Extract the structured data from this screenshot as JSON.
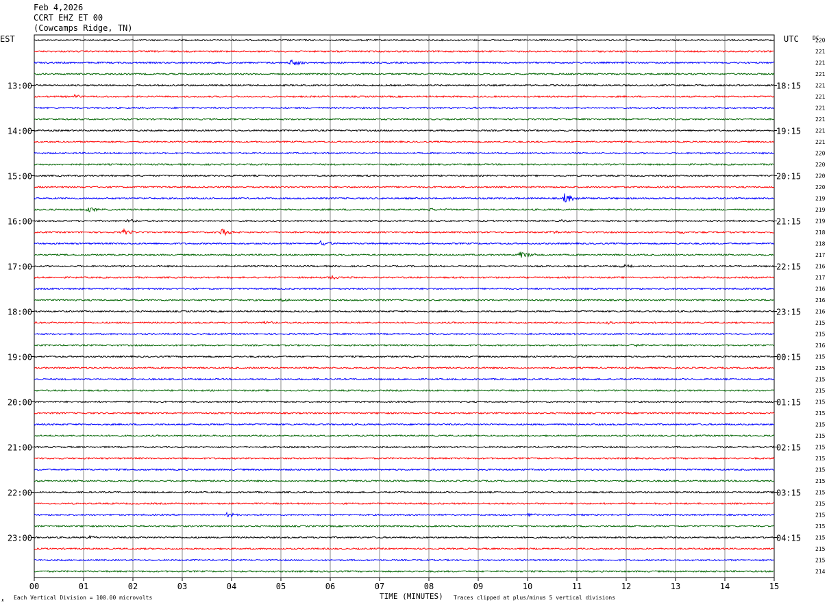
{
  "header": {
    "date": "Feb 4,2026",
    "station": "CCRT EHZ ET 00",
    "location": "(Cowcamps Ridge, TN)"
  },
  "labels": {
    "left_zone": "EST",
    "right_zone": "UTC",
    "dc_header": "DC",
    "xlabel": "TIME (MINUTES)",
    "scale_note": "Each Vertical Division =  100.00 microvolts",
    "clip_note": "Traces clipped at plus/minus 5 vertical divisions",
    "corner_mark": "ᴥ"
  },
  "chart_data": {
    "type": "line",
    "description_kind": "helicorder",
    "x_ticks": [
      "00",
      "01",
      "02",
      "03",
      "04",
      "05",
      "06",
      "07",
      "08",
      "09",
      "10",
      "11",
      "12",
      "13",
      "14",
      "15"
    ],
    "xlim": [
      0,
      15
    ],
    "trace_colors": [
      "#000000",
      "#ff0000",
      "#0000ff",
      "#006400"
    ],
    "left_hour_labels": [
      "13:00",
      "14:00",
      "15:00",
      "16:00",
      "17:00",
      "18:00",
      "19:00",
      "20:00",
      "21:00",
      "22:00",
      "23:00"
    ],
    "right_hour_labels": [
      "18:15",
      "19:15",
      "20:15",
      "21:15",
      "22:15",
      "23:15",
      "00:15",
      "01:15",
      "02:15",
      "03:15",
      "04:15"
    ],
    "dc_values": [
      "220",
      "221",
      "221",
      "221",
      "221",
      "221",
      "221",
      "221",
      "221",
      "221",
      "220",
      "220",
      "220",
      "220",
      "219",
      "219",
      "219",
      "218",
      "218",
      "217",
      "216",
      "217",
      "216",
      "216",
      "216",
      "215",
      "215",
      "216",
      "215",
      "215",
      "215",
      "215",
      "215",
      "215",
      "215",
      "215",
      "215",
      "215",
      "215",
      "215",
      "215",
      "215",
      "215",
      "215",
      "215",
      "215",
      "215",
      "214"
    ],
    "events": [
      {
        "row": 2,
        "minute": 5.2,
        "amp": 5
      },
      {
        "row": 5,
        "minute": 0.8,
        "amp": 3
      },
      {
        "row": 14,
        "minute": 10.75,
        "amp": 7
      },
      {
        "row": 15,
        "minute": 1.1,
        "amp": 3
      },
      {
        "row": 15,
        "minute": 8.0,
        "amp": 2
      },
      {
        "row": 16,
        "minute": 1.9,
        "amp": 2
      },
      {
        "row": 16,
        "minute": 3.0,
        "amp": 2
      },
      {
        "row": 16,
        "minute": 10.7,
        "amp": 2
      },
      {
        "row": 17,
        "minute": 1.8,
        "amp": 4
      },
      {
        "row": 17,
        "minute": 3.8,
        "amp": 5
      },
      {
        "row": 17,
        "minute": 10.5,
        "amp": 2
      },
      {
        "row": 17,
        "minute": 13.1,
        "amp": 2
      },
      {
        "row": 18,
        "minute": 5.8,
        "amp": 5
      },
      {
        "row": 19,
        "minute": 9.85,
        "amp": 6
      },
      {
        "row": 20,
        "minute": 11.9,
        "amp": 2
      },
      {
        "row": 21,
        "minute": 6.0,
        "amp": 3
      },
      {
        "row": 23,
        "minute": 5.0,
        "amp": 2
      },
      {
        "row": 25,
        "minute": 4.6,
        "amp": 2
      },
      {
        "row": 25,
        "minute": 11.6,
        "amp": 2
      },
      {
        "row": 27,
        "minute": 12.1,
        "amp": 2
      },
      {
        "row": 42,
        "minute": 3.9,
        "amp": 3
      },
      {
        "row": 42,
        "minute": 10.0,
        "amp": 2
      },
      {
        "row": 44,
        "minute": 1.1,
        "amp": 2
      }
    ]
  }
}
